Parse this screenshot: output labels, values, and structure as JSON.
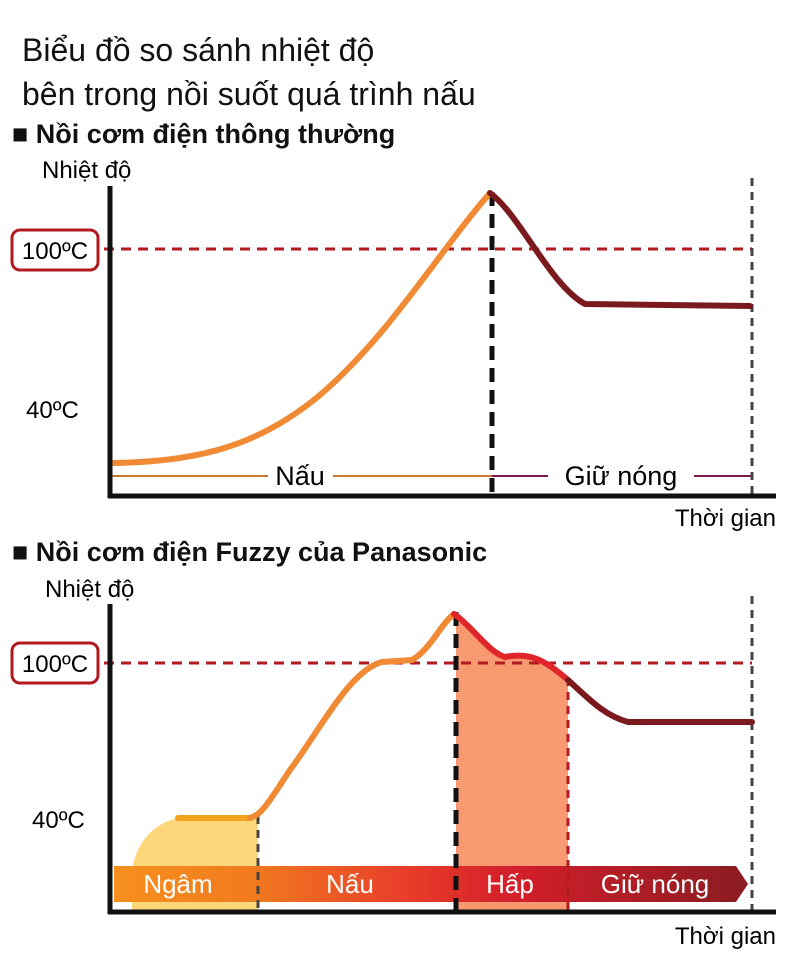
{
  "title_line1": "Biểu đồ so sánh nhiệt độ",
  "title_line2": "bên trong nồi suốt quá trình nấu",
  "chart_data": [
    {
      "type": "line",
      "title": "■ Nồi cơm điện thông thường",
      "ylabel": "Nhiệt độ",
      "xlabel": "Thời gian",
      "y_ticks": [
        "100ºC",
        "40ºC"
      ],
      "reference_line": "100ºC",
      "series": [
        {
          "segment": "cooking",
          "color": "#f08a35"
        },
        {
          "segment": "warming",
          "color": "#7a1a1e"
        }
      ],
      "phases": [
        "Nấu",
        "Giữ nóng"
      ]
    },
    {
      "type": "line",
      "title": "■ Nồi cơm điện Fuzzy của Panasonic",
      "ylabel": "Nhiệt độ",
      "xlabel": "Thời gian",
      "y_ticks": [
        "100ºC",
        "40ºC"
      ],
      "reference_line": "100ºC",
      "series": [
        {
          "segment": "soaking",
          "color": "#f3a21d"
        },
        {
          "segment": "cooking",
          "color": "#f08a35"
        },
        {
          "segment": "steaming",
          "color": "#e0262b"
        },
        {
          "segment": "warming",
          "color": "#7a1a1e"
        }
      ],
      "phases": [
        "Ngâm",
        "Nấu",
        "Hấp",
        "Giữ nóng"
      ]
    }
  ],
  "colors": {
    "reference": "#b11a1e",
    "axis": "#111111",
    "soak_fill": "#fdd77a",
    "steam_fill": "#f79a72"
  }
}
